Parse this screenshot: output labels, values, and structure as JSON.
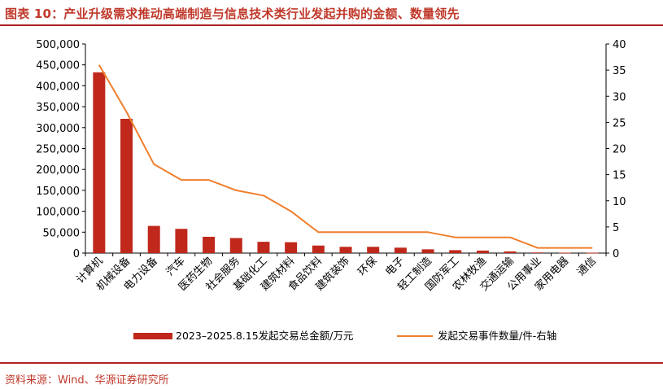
{
  "figure_title": "图表 10：产业升级需求推动高端制造与信息技术类行业发起并购的金额、数量领先",
  "source": "资料来源：Wind、华源证券研究所",
  "colors": {
    "bar": "#c0281b",
    "line": "#f07f2d",
    "title": "#c0392b",
    "rule": "#b22222"
  },
  "chart_data": {
    "type": "bar",
    "categories": [
      "计算机",
      "机械设备",
      "电力设备",
      "汽车",
      "医药生物",
      "社会服务",
      "基础化工",
      "建筑材料",
      "食品饮料",
      "建筑装饰",
      "环保",
      "电子",
      "轻工制造",
      "国防军工",
      "农林牧渔",
      "交通运输",
      "公用事业",
      "家用电器",
      "通信"
    ],
    "series": [
      {
        "name": "2023–2025.8.15发起交易总金额/万元",
        "type": "bar",
        "axis": "left",
        "values": [
          432000,
          321000,
          65000,
          58000,
          39000,
          36000,
          27000,
          26000,
          18000,
          15000,
          15000,
          13000,
          9000,
          7000,
          6000,
          4000,
          1500,
          1000,
          800
        ]
      },
      {
        "name": "发起交易事件数量/件-右轴",
        "type": "line",
        "axis": "right",
        "values": [
          36,
          27,
          17,
          14,
          14,
          12,
          11,
          8,
          4,
          4,
          4,
          4,
          4,
          3,
          3,
          3,
          1,
          1,
          1
        ]
      }
    ],
    "y_left": {
      "min": 0,
      "max": 500000,
      "ticks": [
        "0",
        "50,000",
        "100,000",
        "150,000",
        "200,000",
        "250,000",
        "300,000",
        "350,000",
        "400,000",
        "450,000",
        "500,000"
      ]
    },
    "y_right": {
      "min": 0,
      "max": 40,
      "ticks": [
        "0",
        "5",
        "10",
        "15",
        "20",
        "25",
        "30",
        "35",
        "40"
      ]
    },
    "grid": false,
    "legend_position": "bottom"
  }
}
